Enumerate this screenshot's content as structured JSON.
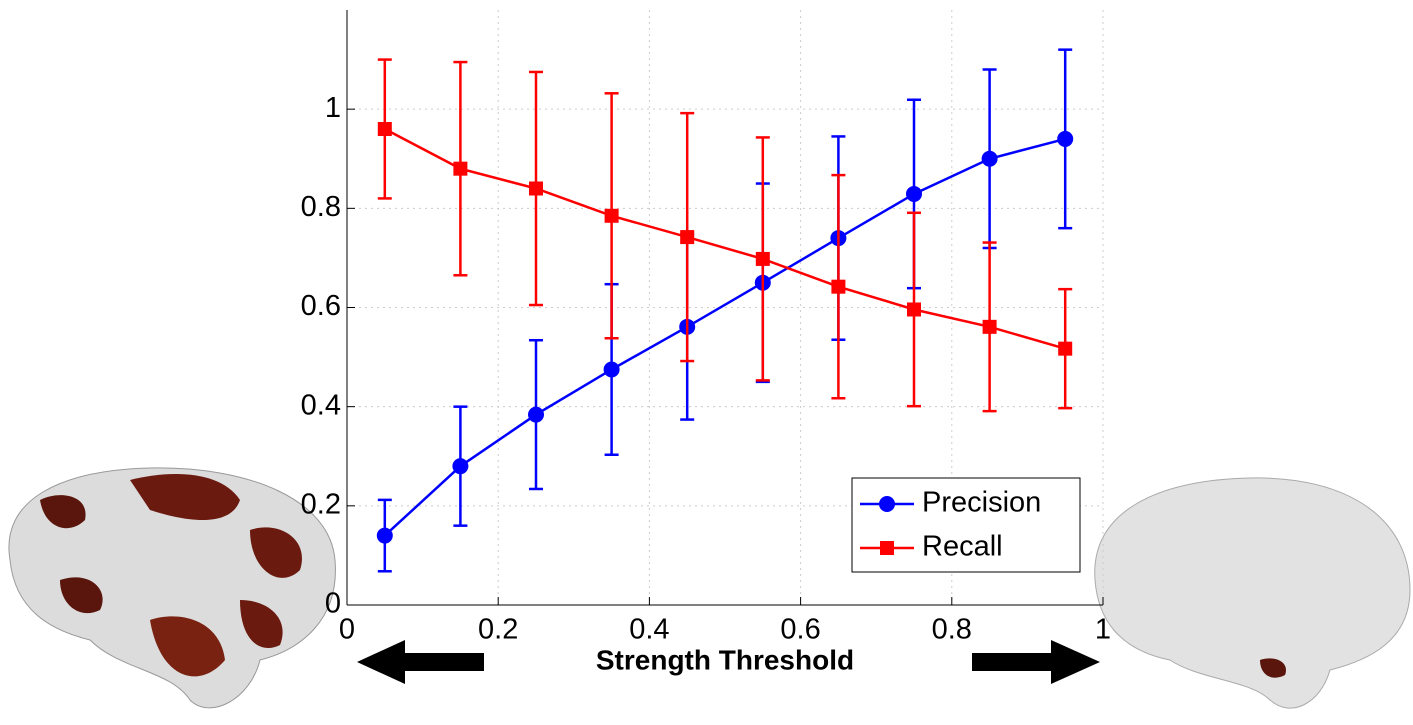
{
  "chart_data": {
    "type": "line",
    "xlabel": "Strength Threshold",
    "x": [
      0.05,
      0.15,
      0.25,
      0.35,
      0.45,
      0.55,
      0.65,
      0.75,
      0.85,
      0.95
    ],
    "series": [
      {
        "name": "Precision",
        "color": "#0000ff",
        "marker": "circle",
        "values": [
          0.14,
          0.28,
          0.384,
          0.475,
          0.561,
          0.65,
          0.74,
          0.829,
          0.9,
          0.94
        ],
        "errors": [
          0.072,
          0.12,
          0.15,
          0.172,
          0.187,
          0.2,
          0.205,
          0.19,
          0.18,
          0.18
        ]
      },
      {
        "name": "Recall",
        "color": "#ff0000",
        "marker": "square",
        "values": [
          0.96,
          0.88,
          0.84,
          0.785,
          0.742,
          0.698,
          0.642,
          0.596,
          0.561,
          0.517
        ],
        "errors": [
          0.14,
          0.215,
          0.235,
          0.247,
          0.25,
          0.245,
          0.225,
          0.195,
          0.17,
          0.12
        ]
      }
    ],
    "xlim": [
      0,
      1
    ],
    "xticks": [
      0,
      0.2,
      0.4,
      0.6,
      0.8,
      1
    ],
    "ylim": [
      0,
      1.2
    ],
    "yticks": [
      0,
      0.2,
      0.4,
      0.6,
      0.8,
      1
    ],
    "grid": true,
    "legend": "lower right"
  }
}
